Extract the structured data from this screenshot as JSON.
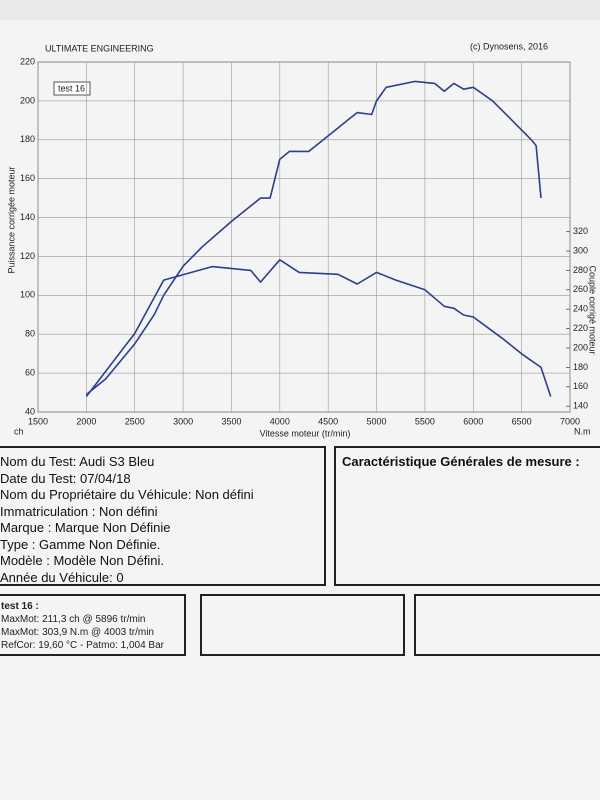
{
  "chart_data": {
    "type": "line",
    "header_left": "ULTIMATE ENGINEERING",
    "header_right": "(c) Dynosens, 2016",
    "legend_label": "test 16",
    "x_label": "Vitesse moteur (tr/min)",
    "y_label": "Puissance corrigée moteur",
    "y2_label": "Couple corrigé moteur",
    "y_unit": "ch",
    "y2_unit": "N.m",
    "xlim": [
      1500,
      7000
    ],
    "xticks": [
      1500,
      2000,
      2500,
      3000,
      3500,
      4000,
      4500,
      5000,
      5500,
      6000,
      6500,
      7000
    ],
    "ylim": [
      40,
      220
    ],
    "yticks": [
      40,
      60,
      80,
      100,
      120,
      140,
      160,
      180,
      200,
      220
    ],
    "y2lim": [
      134,
      495
    ],
    "y2ticks": [
      140,
      160,
      180,
      200,
      220,
      240,
      260,
      280,
      300,
      320
    ],
    "grid": true,
    "series": [
      {
        "name": "Puissance",
        "color": "#2c3f8c",
        "x": [
          2000,
          2200,
          2500,
          2700,
          2800,
          3000,
          3200,
          3500,
          3700,
          3800,
          3900,
          4000,
          4100,
          4300,
          4500,
          4700,
          4800,
          4950,
          5000,
          5100,
          5400,
          5600,
          5700,
          5800,
          5900,
          6000,
          6200,
          6400,
          6600,
          6650,
          6700
        ],
        "values": [
          49,
          57,
          75,
          90,
          100,
          115,
          125,
          138,
          146,
          150,
          150,
          170,
          174,
          174,
          182,
          190,
          194,
          193,
          200,
          207,
          210,
          209,
          205,
          209,
          206,
          207,
          200,
          190,
          180,
          177,
          150
        ]
      },
      {
        "name": "Couple",
        "color": "#2c3f8c",
        "axis": "y2",
        "x": [
          2000,
          2500,
          2800,
          3300,
          3700,
          3800,
          4000,
          4200,
          4600,
          4800,
          5000,
          5200,
          5500,
          5700,
          5800,
          5900,
          6000,
          6300,
          6500,
          6700,
          6800
        ],
        "values": [
          150,
          215,
          270,
          284,
          280,
          268,
          291,
          278,
          276,
          266,
          278,
          270,
          260,
          243,
          241,
          234,
          232,
          210,
          194,
          180,
          150
        ]
      }
    ]
  },
  "info": {
    "lines": [
      "Nom du Test: Audi S3 Bleu",
      "Date du Test: 07/04/18",
      "Nom du Propriétaire du Véhicule: Non défini",
      "Immatriculation  : Non défini",
      "Marque  : Marque Non Définie",
      "Type  : Gamme Non Définie.",
      "Modèle  : Modèle Non Défini.",
      "Année du Véhicule: 0"
    ]
  },
  "characteristics": {
    "title": "Caractéristique Générales de mesure :"
  },
  "results": {
    "title": "test 16 :",
    "lines": [
      "MaxMot: 211,3 ch @ 5896 tr/min",
      "MaxMot: 303,9 N.m @ 4003 tr/min",
      "RefCor: 19,60 °C - Patmo: 1,004 Bar"
    ]
  }
}
